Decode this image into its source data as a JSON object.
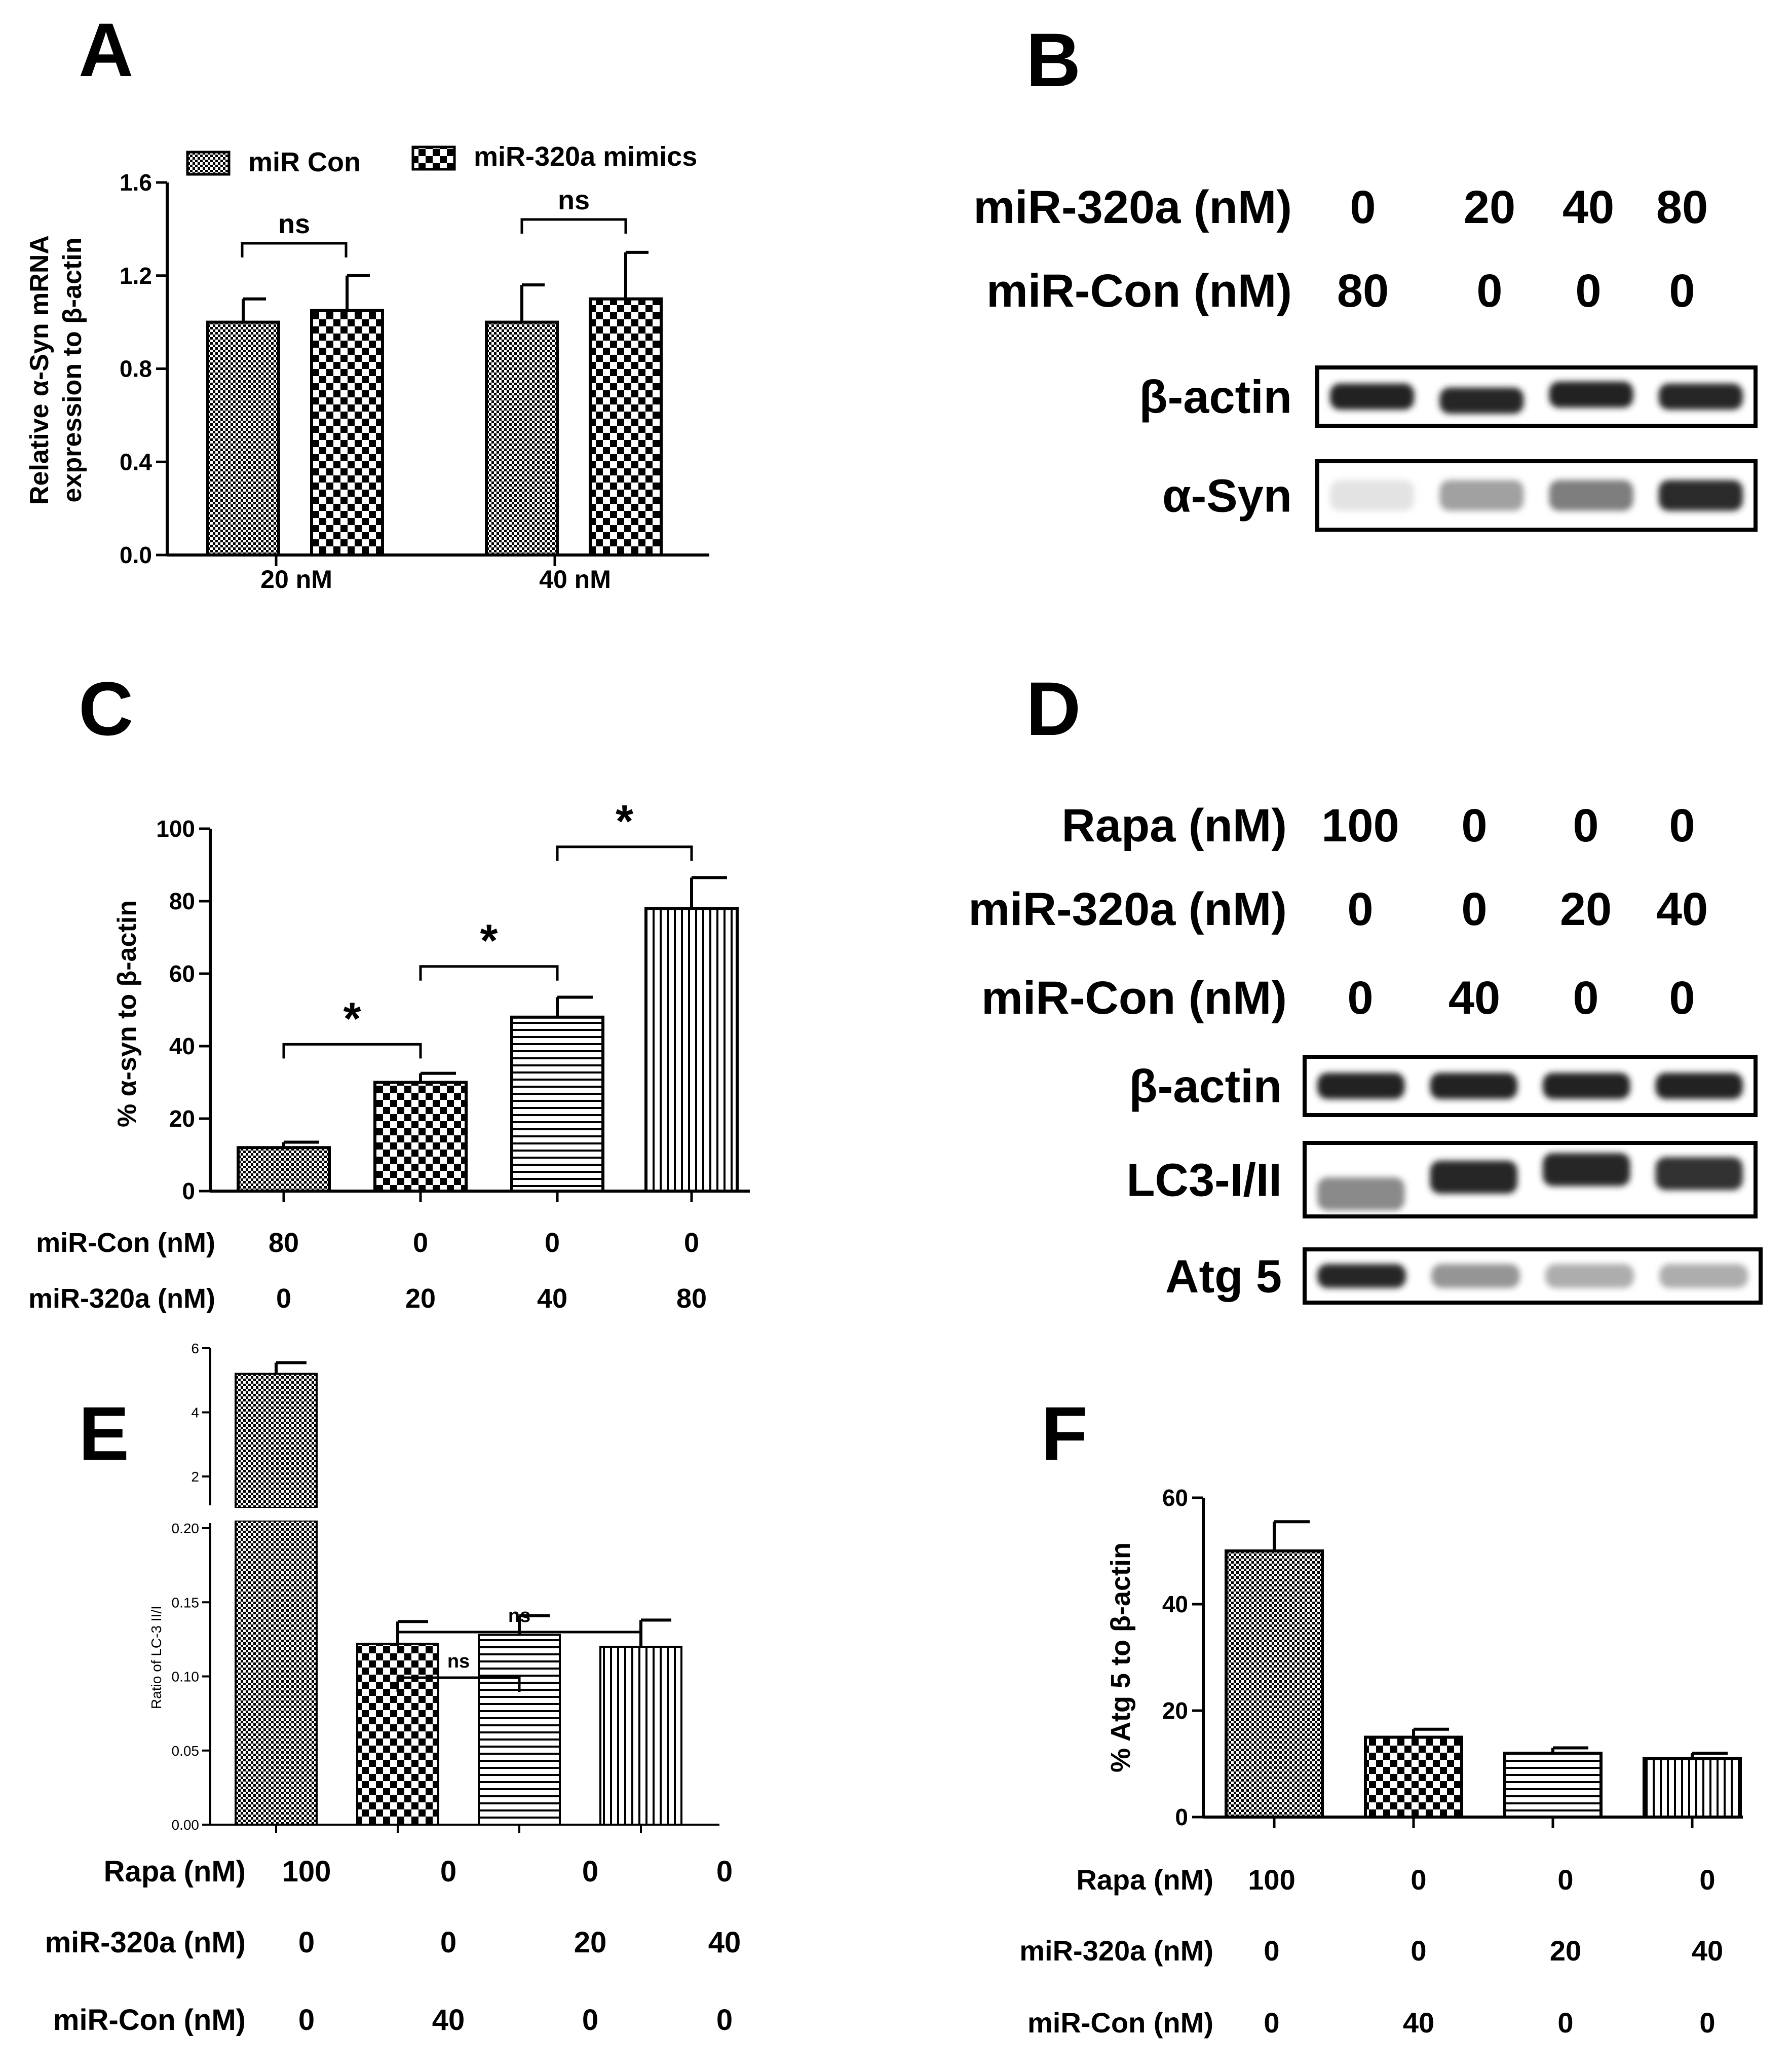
{
  "panels": {
    "A": {
      "letter": "A",
      "chart_data": {
        "type": "bar",
        "ylabel_line1": "Relative α-Syn mRNA",
        "ylabel_line2": "expression to β-actin",
        "ylim": [
          0,
          1.6
        ],
        "yticks": [
          "0.0",
          "0.4",
          "0.8",
          "1.2",
          "1.6"
        ],
        "categories": [
          "20 nM",
          "40 nM"
        ],
        "series": [
          {
            "name": "miR Con",
            "values": [
              1.0,
              1.0
            ],
            "errors": [
              0.1,
              0.16
            ]
          },
          {
            "name": "miR-320a mimics",
            "values": [
              1.05,
              1.1
            ],
            "errors": [
              0.15,
              0.2
            ]
          }
        ],
        "annotations": [
          "ns",
          "ns"
        ]
      }
    },
    "B": {
      "letter": "B",
      "rows": [
        {
          "label": "miR-320a (nM)",
          "values": [
            "0",
            "20",
            "40",
            "80"
          ]
        },
        {
          "label": "miR-Con (nM)",
          "values": [
            "80",
            "0",
            "0",
            "0"
          ]
        }
      ],
      "blots": [
        {
          "label": "β-actin",
          "intensities": [
            0.95,
            0.92,
            0.93,
            0.92
          ]
        },
        {
          "label": "α-Syn",
          "intensities": [
            0.12,
            0.4,
            0.55,
            0.9
          ]
        }
      ]
    },
    "C": {
      "letter": "C",
      "chart_data": {
        "type": "bar",
        "ylabel": "% α-syn  to  β-actin",
        "ylim": [
          0,
          100
        ],
        "yticks": [
          "0",
          "20",
          "40",
          "60",
          "80",
          "100"
        ],
        "values": [
          12,
          30,
          48,
          78
        ],
        "errors": [
          1.5,
          2.5,
          5.5,
          8.5
        ],
        "annotations": [
          "*",
          "*",
          "*"
        ],
        "conditions": [
          {
            "label": "miR-Con (nM)",
            "values": [
              "80",
              "0",
              "0",
              "0"
            ]
          },
          {
            "label": "miR-320a (nM)",
            "values": [
              "0",
              "20",
              "40",
              "80"
            ]
          }
        ]
      }
    },
    "D": {
      "letter": "D",
      "rows": [
        {
          "label": "Rapa (nM)",
          "values": [
            "100",
            "0",
            "0",
            "0"
          ]
        },
        {
          "label": "miR-320a (nM)",
          "values": [
            "0",
            "0",
            "20",
            "40"
          ]
        },
        {
          "label": "miR-Con (nM)",
          "values": [
            "0",
            "40",
            "0",
            "0"
          ]
        }
      ],
      "blots": [
        {
          "label": "β-actin",
          "intensities": [
            0.95,
            0.95,
            0.93,
            0.93
          ]
        },
        {
          "label": "LC3-I/II",
          "intensities": [
            0.5,
            0.92,
            0.92,
            0.88
          ]
        },
        {
          "label": "Atg 5",
          "intensities": [
            0.92,
            0.45,
            0.35,
            0.35
          ]
        }
      ]
    },
    "E": {
      "letter": "E",
      "chart_data": {
        "type": "bar",
        "ylabel": "Ratio of LC-3 II/I",
        "upper_yticks": [
          "2",
          "4",
          "6"
        ],
        "lower_yticks": [
          "0.00",
          "0.05",
          "0.10",
          "0.15",
          "0.20"
        ],
        "values": [
          5.2,
          0.122,
          0.128,
          0.12
        ],
        "errors": [
          0.35,
          0.015,
          0.013,
          0.018
        ],
        "annotations": [
          "ns",
          "ns"
        ],
        "conditions": [
          {
            "label": "Rapa (nM)",
            "values": [
              "100",
              "0",
              "0",
              "0"
            ]
          },
          {
            "label": "miR-320a (nM)",
            "values": [
              "0",
              "0",
              "20",
              "40"
            ]
          },
          {
            "label": "miR-Con (nM)",
            "values": [
              "0",
              "40",
              "0",
              "0"
            ]
          }
        ]
      }
    },
    "F": {
      "letter": "F",
      "chart_data": {
        "type": "bar",
        "ylabel": "% Atg 5 to β-actin",
        "ylim": [
          0,
          60
        ],
        "yticks": [
          "0",
          "20",
          "40",
          "60"
        ],
        "values": [
          50,
          15,
          12,
          11
        ],
        "errors": [
          5.5,
          1.5,
          1.0,
          1.0
        ],
        "conditions": [
          {
            "label": "Rapa (nM)",
            "values": [
              "100",
              "0",
              "0",
              "0"
            ]
          },
          {
            "label": "miR-320a (nM)",
            "values": [
              "0",
              "0",
              "20",
              "40"
            ]
          },
          {
            "label": "miR-Con (nM)",
            "values": [
              "0",
              "40",
              "0",
              "0"
            ]
          }
        ]
      }
    }
  },
  "colors": {
    "ink": "#000000",
    "bar_fill": "#ffffff"
  }
}
